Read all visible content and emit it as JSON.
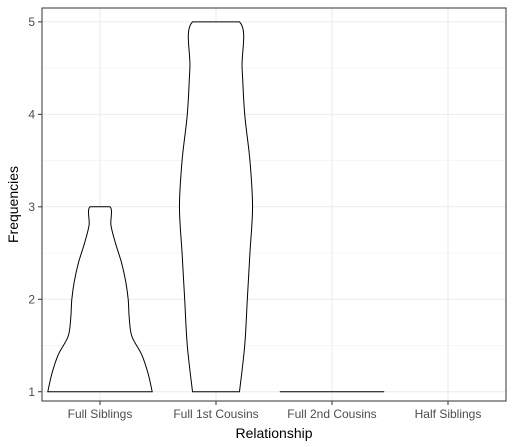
{
  "chart_data": {
    "type": "violin",
    "xlabel": "Relationship",
    "ylabel": "Frequencies",
    "categories": [
      "Full Siblings",
      "Full 1st Cousins",
      "Full 2nd Cousins",
      "Half Siblings"
    ],
    "ylim": [
      0.9,
      5.15
    ],
    "yticks": [
      1,
      2,
      3,
      4,
      5
    ],
    "y_tick_labels": [
      "1",
      "2",
      "3",
      "4",
      "5"
    ],
    "grid": true,
    "violins": [
      {
        "category": "Full Siblings",
        "min": 1,
        "max": 3,
        "density_profile": [
          [
            1.0,
            1.0
          ],
          [
            1.2,
            0.92
          ],
          [
            1.4,
            0.8
          ],
          [
            1.6,
            0.61
          ],
          [
            1.8,
            0.56
          ],
          [
            2.0,
            0.54
          ],
          [
            2.2,
            0.49
          ],
          [
            2.4,
            0.41
          ],
          [
            2.6,
            0.3
          ],
          [
            2.8,
            0.21
          ],
          [
            3.0,
            0.19
          ]
        ]
      },
      {
        "category": "Full 1st Cousins",
        "min": 1,
        "max": 5,
        "density_profile": [
          [
            1.0,
            0.45
          ],
          [
            1.5,
            0.55
          ],
          [
            2.0,
            0.6
          ],
          [
            2.5,
            0.65
          ],
          [
            3.0,
            0.7
          ],
          [
            3.5,
            0.65
          ],
          [
            4.0,
            0.55
          ],
          [
            4.5,
            0.5
          ],
          [
            5.0,
            0.45
          ]
        ]
      },
      {
        "category": "Full 2nd Cousins",
        "min": 1,
        "max": 1,
        "density_profile": [
          [
            1.0,
            1.0
          ]
        ]
      },
      {
        "category": "Half Siblings",
        "min": null,
        "max": null,
        "density_profile": []
      }
    ]
  }
}
